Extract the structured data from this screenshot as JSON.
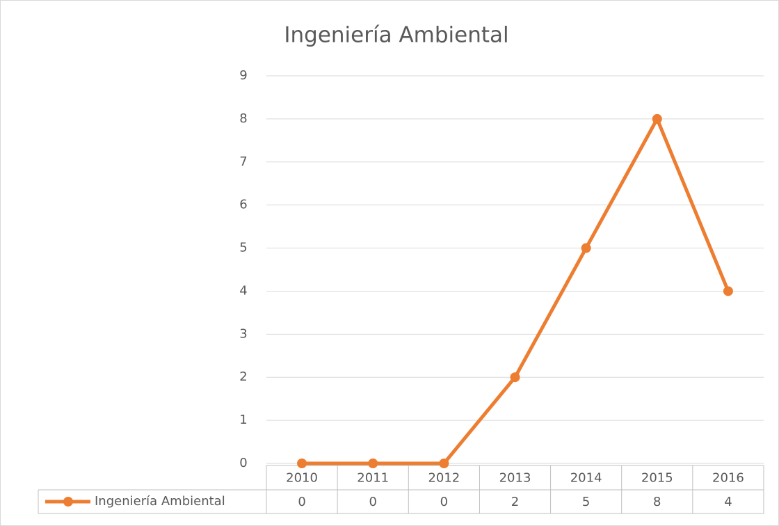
{
  "chart_data": {
    "type": "line",
    "title": "Ingeniería Ambiental",
    "categories": [
      "2010",
      "2011",
      "2012",
      "2013",
      "2014",
      "2015",
      "2016"
    ],
    "series": [
      {
        "name": "Ingeniería Ambiental",
        "color": "#ed7d31",
        "values": [
          0,
          0,
          0,
          2,
          5,
          8,
          4
        ]
      }
    ],
    "ylim": [
      0,
      9
    ],
    "yticks": [
      0,
      1,
      2,
      3,
      4,
      5,
      6,
      7,
      8,
      9
    ],
    "grid": true,
    "legend": "bottom-left",
    "data_table": true
  }
}
